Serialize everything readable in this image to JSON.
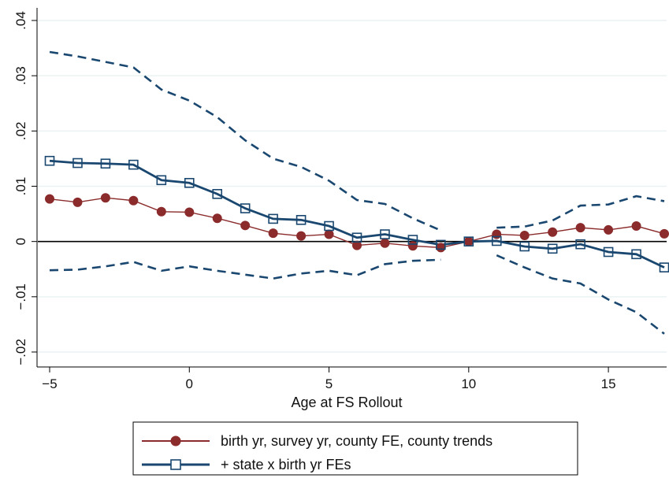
{
  "chart_data": {
    "type": "line",
    "xlabel": "Age at FS Rollout",
    "ylabel": "",
    "xlim": [
      -5,
      17
    ],
    "ylim": [
      -0.022,
      0.04
    ],
    "x_ticks": [
      -5,
      0,
      5,
      10,
      15
    ],
    "x_tick_labels": [
      "−5",
      "0",
      "5",
      "10",
      "15"
    ],
    "y_ticks": [
      -0.02,
      -0.01,
      0,
      0.01,
      0.02,
      0.03,
      0.04
    ],
    "y_tick_labels": [
      "−.02",
      "−.01",
      "0",
      ".01",
      ".02",
      ".03",
      ".04"
    ],
    "grid": true,
    "reference_line_y": 0,
    "legend_position": "bottom",
    "colors": {
      "series1": "#8b2b2b",
      "series2": "#1a476f",
      "ci": "#1a476f",
      "grid": "#eaf2f3",
      "zero_line": "#000000"
    },
    "series": [
      {
        "name": "birth yr, survey yr, county FE, county trends",
        "marker": "filled-circle",
        "x": [
          -5,
          -4,
          -3,
          -2,
          -1,
          0,
          1,
          2,
          3,
          4,
          5,
          6,
          7,
          8,
          9,
          10,
          11,
          12,
          13,
          14,
          15,
          16,
          17
        ],
        "values": [
          0.0077,
          0.0071,
          0.0079,
          0.0074,
          0.0054,
          0.0053,
          0.0042,
          0.0029,
          0.0015,
          0.001,
          0.0013,
          -0.0007,
          -0.0003,
          -0.0008,
          -0.0011,
          0.0,
          0.0013,
          0.0011,
          0.0017,
          0.0025,
          0.0021,
          0.0028,
          0.0014
        ]
      },
      {
        "name": "+ state x birth yr FEs",
        "marker": "hollow-square",
        "x": [
          -5,
          -4,
          -3,
          -2,
          -1,
          0,
          1,
          2,
          3,
          4,
          5,
          6,
          7,
          8,
          9,
          10,
          11,
          12,
          13,
          14,
          15,
          16,
          17
        ],
        "values": [
          0.0146,
          0.0142,
          0.0141,
          0.0139,
          0.0111,
          0.0106,
          0.0086,
          0.006,
          0.0041,
          0.0039,
          0.0028,
          0.0007,
          0.0013,
          0.0003,
          -0.0006,
          0.0,
          0.0001,
          -0.0009,
          -0.0013,
          -0.0005,
          -0.0019,
          -0.0023,
          -0.0047
        ]
      }
    ],
    "confidence_band": {
      "series": "+ state x birth yr FEs",
      "style": "dashed",
      "segments": [
        {
          "x": [
            -5,
            -4,
            -3,
            -2,
            -1,
            0,
            1,
            2,
            3,
            4,
            5,
            6,
            7,
            8,
            9
          ],
          "upper": [
            0.0343,
            0.0335,
            0.0325,
            0.0315,
            0.0275,
            0.0255,
            0.0225,
            0.0183,
            0.015,
            0.0135,
            0.011,
            0.0075,
            0.0068,
            0.0042,
            0.002
          ],
          "lower": [
            -0.0052,
            -0.0051,
            -0.0045,
            -0.0037,
            -0.0053,
            -0.0045,
            -0.0053,
            -0.006,
            -0.0067,
            -0.0058,
            -0.0053,
            -0.0061,
            -0.0041,
            -0.0035,
            -0.0033
          ]
        },
        {
          "x": [
            11,
            12,
            13,
            14,
            15,
            16,
            17
          ],
          "upper": [
            0.0025,
            0.0027,
            0.0038,
            0.0065,
            0.0067,
            0.0082,
            0.0073
          ],
          "lower": [
            -0.0025,
            -0.0047,
            -0.0067,
            -0.0076,
            -0.0105,
            -0.0128,
            -0.0167
          ]
        }
      ]
    }
  }
}
